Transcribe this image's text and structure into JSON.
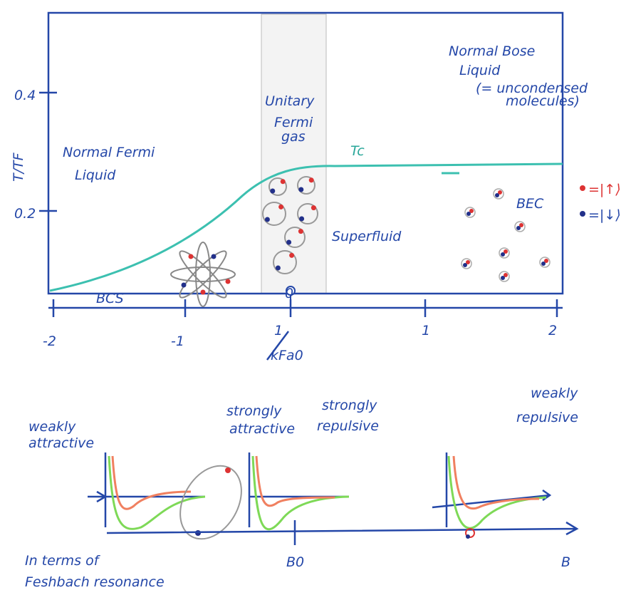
{
  "phase_diagram": {
    "y_axis_label": "T/TF",
    "y_ticks": [
      "0.4",
      "0.2"
    ],
    "x_ticks": [
      "-2",
      "-1",
      "0",
      "1",
      "2"
    ],
    "x_axis_label": {
      "numerator": "1",
      "denominator": "kFa0"
    },
    "normal_fermi": [
      "Normal Fermi",
      "Liquid"
    ],
    "unitary": [
      "Unitary",
      "Fermi",
      "gas"
    ],
    "normal_bose": [
      "Normal Bose",
      "Liquid",
      "(= uncondensed",
      "molecules)"
    ],
    "superfluid": "Superfluid",
    "bcs": "BCS",
    "bec": "BEC",
    "curve_label": "Tc"
  },
  "legend": [
    "=|↑⟩",
    "=|↓⟩"
  ],
  "interactions": [
    [
      "weakly",
      "attractive"
    ],
    [
      "strongly",
      "attractive"
    ],
    [
      "strongly",
      "repulsive"
    ],
    [
      "weakly",
      "repulsive"
    ]
  ],
  "resonance": {
    "axis_label": "B",
    "marker_label": "B0",
    "caption": [
      "In terms of",
      "Feshbach resonance"
    ]
  }
}
